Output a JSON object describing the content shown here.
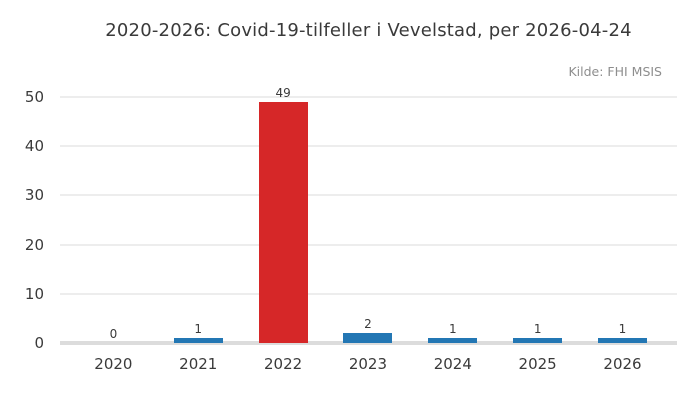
{
  "chart_data": {
    "type": "bar",
    "title": "2020-2026: Covid-19-tilfeller i Vevelstad, per 2026-04-24",
    "source_note": "Kilde: FHI MSIS",
    "categories": [
      "2020",
      "2021",
      "2022",
      "2023",
      "2024",
      "2025",
      "2026"
    ],
    "values": [
      0,
      1,
      49,
      2,
      1,
      1,
      1
    ],
    "bar_colors": [
      "#2377b4",
      "#2377b4",
      "#d62728",
      "#2377b4",
      "#2377b4",
      "#2377b4",
      "#2377b4"
    ],
    "value_labels": [
      "0",
      "1",
      "49",
      "2",
      "1",
      "1",
      "1"
    ],
    "xlabel": "",
    "ylabel": "",
    "ylim": [
      0,
      50
    ],
    "yticks": [
      0,
      10,
      20,
      30,
      40,
      50
    ],
    "grid": true,
    "legend_position": "none",
    "colors": {
      "bar_default": "#2377b4",
      "bar_highlight": "#d62728",
      "gridline": "#ededed",
      "baseline": "#dcdcdc",
      "text": "#3a3a3a",
      "muted_text": "#8e8e8e",
      "background": "#ffffff"
    }
  }
}
